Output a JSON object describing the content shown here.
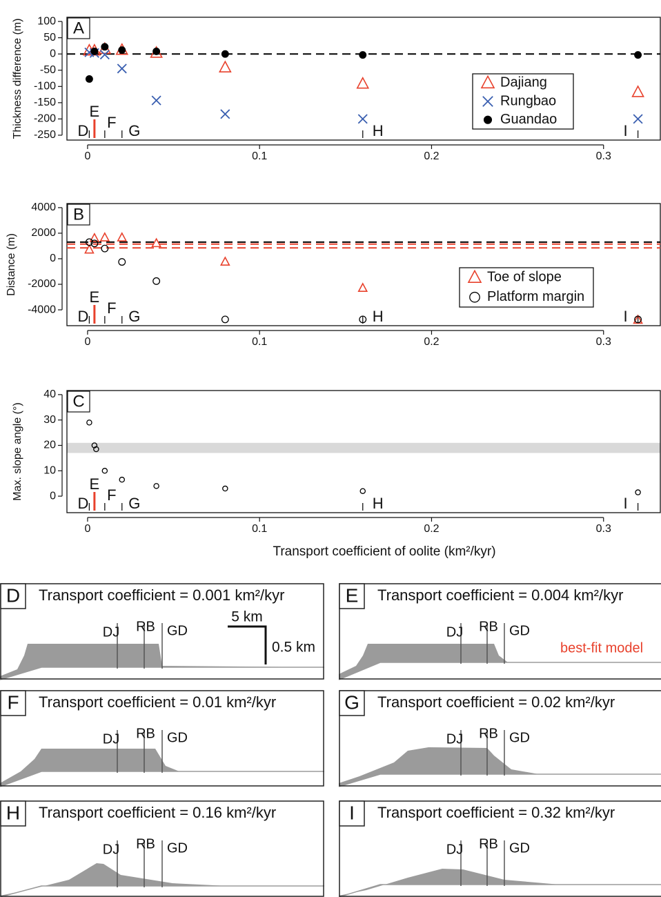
{
  "chart_data": [
    {
      "type": "scatter",
      "title": "A",
      "y_label": "Thickness difference (m)",
      "x": [
        0.001,
        0.004,
        0.01,
        0.02,
        0.04,
        0.08,
        0.16,
        0.32
      ],
      "series": [
        {
          "name": "Dajiang",
          "color": "#e8412c",
          "marker": "triangle",
          "filled": false,
          "values": [
            10,
            10,
            15,
            12,
            3,
            -42,
            -92,
            -118
          ]
        },
        {
          "name": "Rungbao",
          "color": "#3a5fb0",
          "marker": "cross",
          "filled": false,
          "values": [
            5,
            3,
            -2,
            -45,
            -143,
            -185,
            -200,
            -200
          ]
        },
        {
          "name": "Guandao",
          "color": "#000000",
          "marker": "circle",
          "filled": true,
          "values": [
            -77,
            8,
            22,
            12,
            8,
            0,
            -3,
            -3
          ]
        }
      ],
      "xlim": [
        -0.012,
        0.333
      ],
      "xticks": [
        0,
        0.1,
        0.2,
        0.3
      ],
      "ylim": [
        -265,
        113
      ],
      "yticks": [
        100,
        50,
        0,
        -50,
        -100,
        -150,
        -200,
        -250
      ],
      "hlines": [
        {
          "value": 0,
          "color": "#000000"
        }
      ],
      "annotations": [
        {
          "text": "D",
          "x": 0.001
        },
        {
          "text": "E",
          "x": 0.004,
          "color": "#e8412c"
        },
        {
          "text": "F",
          "x": 0.01
        },
        {
          "text": "G",
          "x": 0.02
        },
        {
          "text": "H",
          "x": 0.16
        },
        {
          "text": "I",
          "x": 0.32
        }
      ],
      "legend": "right"
    },
    {
      "type": "scatter",
      "title": "B",
      "y_label": "Distance (m)",
      "x": [
        0.001,
        0.004,
        0.01,
        0.02,
        0.04,
        0.08,
        0.16,
        0.32
      ],
      "series": [
        {
          "name": "Toe of slope",
          "color": "#e8412c",
          "marker": "triangle",
          "filled": false,
          "values": [
            700,
            1600,
            1650,
            1650,
            1200,
            -250,
            -2300,
            -4800
          ]
        },
        {
          "name": "Platform margin",
          "color": "#000000",
          "marker": "circle",
          "filled": false,
          "values": [
            1300,
            1200,
            800,
            -250,
            -1750,
            -4750,
            -4750,
            -4750
          ]
        }
      ],
      "xlim": [
        -0.012,
        0.333
      ],
      "xticks": [
        0,
        0.1,
        0.2,
        0.3
      ],
      "ylim": [
        -5240,
        4320
      ],
      "yticks": [
        4000,
        2000,
        0,
        -2000,
        -4000
      ],
      "hlines": [
        {
          "value": 1300,
          "color": "#000000"
        },
        {
          "value": 1150,
          "color": "#e8412c"
        },
        {
          "value": 850,
          "color": "#e8412c"
        }
      ],
      "annotations": [
        {
          "text": "D",
          "x": 0.001
        },
        {
          "text": "E",
          "x": 0.004,
          "color": "#e8412c"
        },
        {
          "text": "F",
          "x": 0.01
        },
        {
          "text": "G",
          "x": 0.02
        },
        {
          "text": "H",
          "x": 0.16
        },
        {
          "text": "I",
          "x": 0.32
        }
      ],
      "legend": "right"
    },
    {
      "type": "scatter",
      "title": "C",
      "y_label": "Max. slope angle (°)",
      "x_label": "Transport coefficient of oolite (km²/kyr)",
      "x": [
        0.001,
        0.004,
        0.005,
        0.01,
        0.02,
        0.04,
        0.08,
        0.16,
        0.32
      ],
      "series": [
        {
          "color": "#000000",
          "marker": "circle",
          "filled": false,
          "values": [
            29,
            20,
            18.5,
            10,
            6.5,
            4,
            3,
            2,
            1.5
          ]
        }
      ],
      "xlim": [
        -0.012,
        0.333
      ],
      "xticks": [
        0,
        0.1,
        0.2,
        0.3
      ],
      "ylim": [
        -6.5,
        41.6
      ],
      "yticks": [
        40,
        30,
        20,
        10,
        0
      ],
      "band": [
        17,
        21
      ],
      "band_color": "#d9d9d9",
      "annotations": [
        {
          "text": "D",
          "x": 0.001
        },
        {
          "text": "E",
          "x": 0.004,
          "color": "#e8412c"
        },
        {
          "text": "F",
          "x": 0.01
        },
        {
          "text": "G",
          "x": 0.02
        },
        {
          "text": "H",
          "x": 0.16
        },
        {
          "text": "I",
          "x": 0.32
        }
      ]
    }
  ],
  "panels": [
    {
      "letter": "D",
      "title": "Transport coefficient = 0.001 km²/kyr",
      "wells": [
        "DJ",
        "RB",
        "GD"
      ],
      "scale_bar": {
        "horizontal": "5 km",
        "vertical": "0.5 km"
      }
    },
    {
      "letter": "E",
      "title": "Transport coefficient = 0.004 km²/kyr",
      "wells": [
        "DJ",
        "RB",
        "GD"
      ],
      "note": "best-fit model"
    },
    {
      "letter": "F",
      "title": "Transport coefficient = 0.01 km²/kyr",
      "wells": [
        "DJ",
        "RB",
        "GD"
      ]
    },
    {
      "letter": "G",
      "title": "Transport coefficient = 0.02 km²/kyr",
      "wells": [
        "DJ",
        "RB",
        "GD"
      ]
    },
    {
      "letter": "H",
      "title": "Transport coefficient = 0.16 km²/kyr",
      "wells": [
        "DJ",
        "RB",
        "GD"
      ]
    },
    {
      "letter": "I",
      "title": "Transport coefficient = 0.32 km²/kyr",
      "wells": [
        "DJ",
        "RB",
        "GD"
      ]
    }
  ]
}
